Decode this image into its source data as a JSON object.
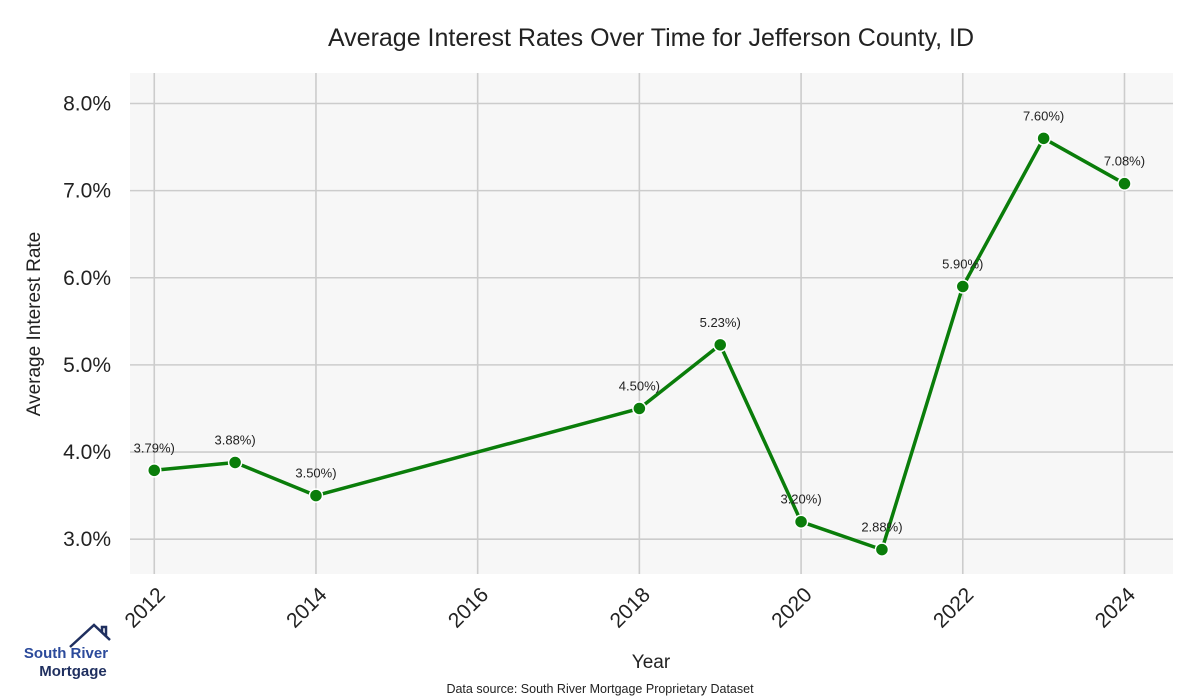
{
  "chart_data": {
    "type": "line",
    "title": "Average Interest Rates Over Time for Jefferson County, ID",
    "xlabel": "Year",
    "ylabel": "Average Interest Rate",
    "x": [
      2012,
      2013,
      2014,
      2018,
      2019,
      2020,
      2021,
      2022,
      2023,
      2024
    ],
    "series": [
      {
        "values": [
          3.79,
          3.88,
          3.5,
          4.5,
          5.23,
          3.2,
          2.88,
          5.9,
          7.6,
          7.08
        ],
        "labels": [
          "3.79%)",
          "3.88%)",
          "3.50%)",
          "4.50%)",
          "5.23%)",
          "3.20%)",
          "2.88%)",
          "5.90%)",
          "7.60%)",
          "7.08%)"
        ],
        "color": "#0a7d0a"
      }
    ],
    "xticks": [
      2012,
      2014,
      2016,
      2018,
      2020,
      2022,
      2024
    ],
    "xtick_labels": [
      "2012",
      "2014",
      "2016",
      "2018",
      "2020",
      "2022",
      "2024"
    ],
    "xlim": [
      2011.7,
      2024.6
    ],
    "yticks": [
      3.0,
      4.0,
      5.0,
      6.0,
      7.0,
      8.0
    ],
    "ytick_labels": [
      "3.0%",
      "4.0%",
      "5.0%",
      "6.0%",
      "7.0%",
      "8.0%"
    ],
    "ylim": [
      2.6,
      8.35
    ],
    "grid": true,
    "plot_background": "#f7f7f7"
  },
  "footer": {
    "source": "Data source: South River Mortgage Proprietary Dataset"
  },
  "logo": {
    "line1": "South River",
    "line2": "Mortgage",
    "color1": "#2b4a9b",
    "color2": "#1f2f5f"
  }
}
